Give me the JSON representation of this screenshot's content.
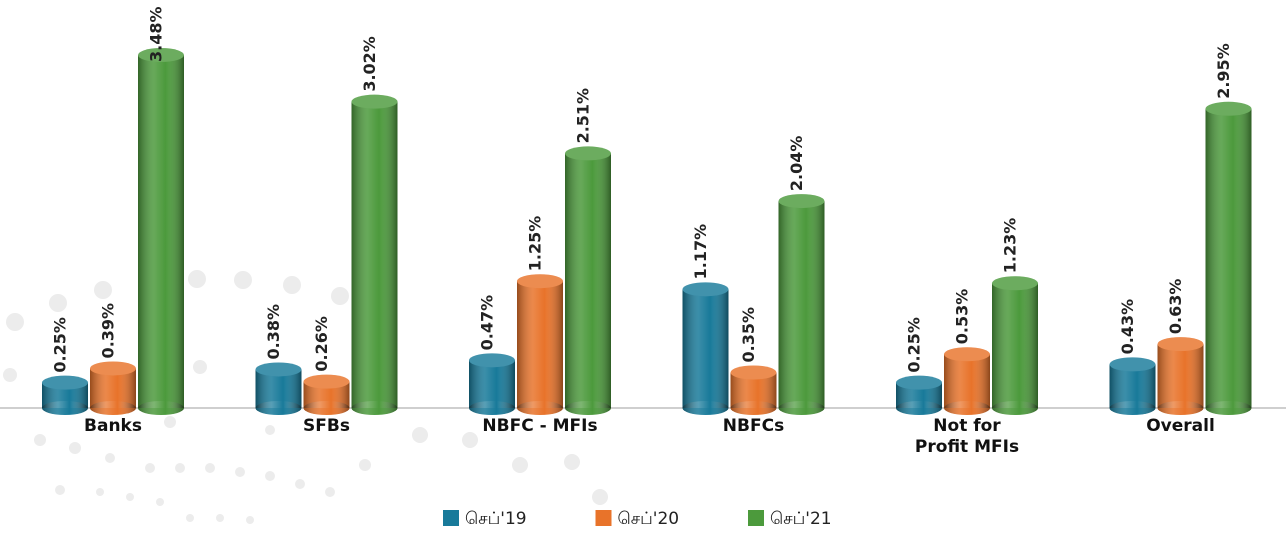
{
  "chart_data": {
    "type": "bar",
    "categories": [
      "Banks",
      "SFBs",
      "NBFC - MFIs",
      "NBFCs",
      "Not for Profit MFIs",
      "Overall"
    ],
    "series": [
      {
        "name": "செப்'19",
        "color": "#187a9a",
        "values": [
          0.25,
          0.38,
          0.47,
          1.17,
          0.25,
          0.43
        ],
        "value_labels": [
          "0.25%",
          "0.38%",
          "0.47%",
          "1.17%",
          "0.25%",
          "0.43%"
        ]
      },
      {
        "name": "செப்'20",
        "color": "#e8732a",
        "values": [
          0.39,
          0.26,
          1.25,
          0.35,
          0.53,
          0.63
        ],
        "value_labels": [
          "0.39%",
          "0.26%",
          "1.25%",
          "0.35%",
          "0.53%",
          "0.63%"
        ]
      },
      {
        "name": "செப்'21",
        "color": "#4c9a3c",
        "values": [
          3.48,
          3.02,
          2.51,
          2.04,
          1.23,
          2.95
        ],
        "value_labels": [
          "3.48%",
          "3.02%",
          "2.51%",
          "2.04%",
          "1.23%",
          "2.95%"
        ]
      }
    ],
    "ylim": [
      0,
      3.5
    ],
    "legend": "bottom"
  }
}
